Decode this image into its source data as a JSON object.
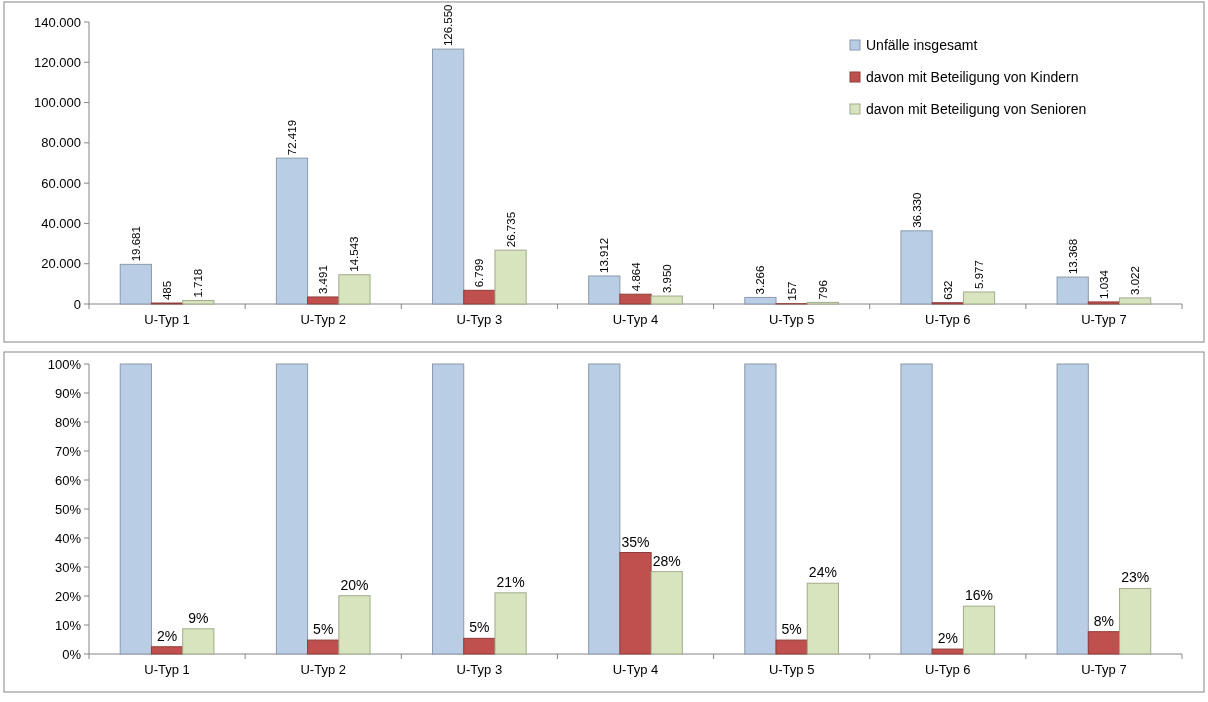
{
  "chart_data": [
    {
      "type": "bar",
      "categories": [
        "U-Typ 1",
        "U-Typ 2",
        "U-Typ 3",
        "U-Typ 4",
        "U-Typ 5",
        "U-Typ 6",
        "U-Typ 7"
      ],
      "series": [
        {
          "name": "Unfälle insgesamt",
          "color": "#b9cde5",
          "values": [
            19681,
            72419,
            126550,
            13912,
            3266,
            36330,
            13368
          ],
          "value_labels": [
            "19.681",
            "72.419",
            "126.550",
            "13.912",
            "3.266",
            "36.330",
            "13.368"
          ]
        },
        {
          "name": "davon mit Beteiligung von Kindern",
          "color": "#c0504d",
          "values": [
            485,
            3491,
            6799,
            4864,
            157,
            632,
            1034
          ],
          "value_labels": [
            "485",
            "3.491",
            "6.799",
            "4.864",
            "157",
            "632",
            "1.034"
          ]
        },
        {
          "name": "davon mit Beteiligung von Senioren",
          "color": "#d7e4bd",
          "values": [
            1718,
            14543,
            26735,
            3950,
            796,
            5977,
            3022
          ],
          "value_labels": [
            "1.718",
            "14.543",
            "26.735",
            "3.950",
            "796",
            "5.977",
            "3.022"
          ]
        }
      ],
      "ylim": [
        0,
        140000
      ],
      "yticks": [
        0,
        {
          "value": 20000,
          "label": "20.000"
        },
        {
          "value": 40000,
          "label": "40.000"
        },
        {
          "value": 60000,
          "label": "60.000"
        },
        {
          "value": 80000,
          "label": "80.000"
        },
        {
          "value": 100000,
          "label": "100.000"
        },
        {
          "value": 120000,
          "label": "120.000"
        },
        {
          "value": 140000,
          "label": "140.000"
        }
      ],
      "legend": "top right",
      "grid": false
    },
    {
      "type": "bar",
      "categories": [
        "U-Typ 1",
        "U-Typ 2",
        "U-Typ 3",
        "U-Typ 4",
        "U-Typ 5",
        "U-Typ 6",
        "U-Typ 7"
      ],
      "series": [
        {
          "color": "#b9cde5",
          "values": [
            100,
            100,
            100,
            100,
            100,
            100,
            100
          ]
        },
        {
          "color": "#c0504d",
          "values": [
            2.5,
            4.8,
            5.4,
            35.0,
            4.8,
            1.7,
            7.7
          ],
          "value_labels": [
            "2%",
            "5%",
            "5%",
            "35%",
            "5%",
            "2%",
            "8%"
          ]
        },
        {
          "color": "#d7e4bd",
          "values": [
            8.7,
            20.1,
            21.1,
            28.4,
            24.4,
            16.5,
            22.6
          ],
          "value_labels": [
            "9%",
            "20%",
            "21%",
            "28%",
            "24%",
            "16%",
            "23%"
          ]
        }
      ],
      "ylim": [
        0,
        100
      ],
      "yticks": [
        {
          "value": 0,
          "label": "0%"
        },
        {
          "value": 10,
          "label": "10%"
        },
        {
          "value": 20,
          "label": "20%"
        },
        {
          "value": 30,
          "label": "30%"
        },
        {
          "value": 40,
          "label": "40%"
        },
        {
          "value": 50,
          "label": "50%"
        },
        {
          "value": 60,
          "label": "60%"
        },
        {
          "value": 70,
          "label": "70%"
        },
        {
          "value": 80,
          "label": "80%"
        },
        {
          "value": 90,
          "label": "90%"
        },
        {
          "value": 100,
          "label": "100%"
        }
      ],
      "grid": false
    }
  ]
}
